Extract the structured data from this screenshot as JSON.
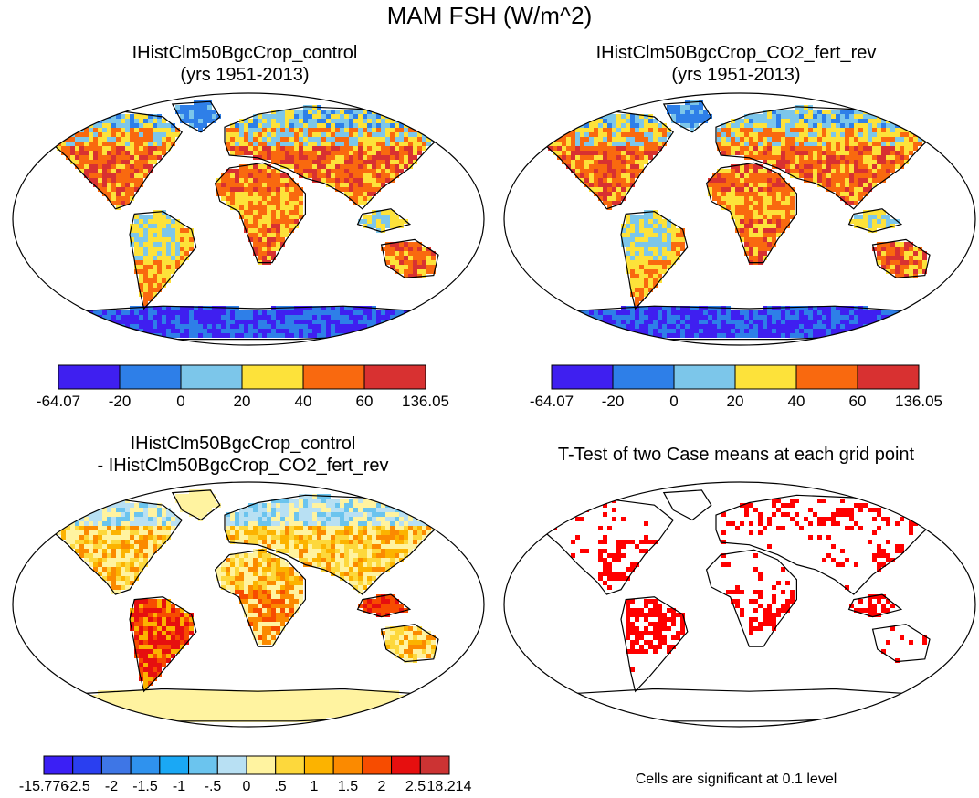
{
  "figure": {
    "title": "MAM FSH (W/m^2)",
    "panels": [
      {
        "id": "control",
        "title_line1": "IHistClm50BgcCrop_control",
        "title_line2": "(yrs 1951-2013)"
      },
      {
        "id": "co2",
        "title_line1": "IHistClm50BgcCrop_CO2_fert_rev",
        "title_line2": "(yrs 1951-2013)"
      },
      {
        "id": "diff",
        "title_line1": "IHistClm50BgcCrop_control",
        "title_line2": "- IHistClm50BgcCrop_CO2_fert_rev"
      },
      {
        "id": "ttest",
        "title_line1": "T-Test of two Case means at each grid point",
        "title_line2": ""
      }
    ],
    "note": "Cells are significant at 0.1 level"
  },
  "colorbars": {
    "abs": {
      "labels": [
        "-64.07",
        "-20",
        "0",
        "20",
        "40",
        "60",
        "136.05"
      ],
      "colors": [
        "#3f1ff0",
        "#2e7fe8",
        "#7cc6ea",
        "#fde23a",
        "#f9690f",
        "#d83131"
      ]
    },
    "diff": {
      "labels": [
        "-15.776",
        "-2.5",
        "-2",
        "-1.5",
        "-1",
        "-.5",
        "0",
        ".5",
        "1",
        "1.5",
        "2",
        "2.5",
        "18.214"
      ],
      "colors": [
        "#3b1ff5",
        "#2a3ff0",
        "#3e76e6",
        "#2f92ee",
        "#1aa8f5",
        "#6bc4ee",
        "#b8e0f3",
        "#fff3a0",
        "#fdd83c",
        "#fcb300",
        "#fb8a00",
        "#f74c00",
        "#e60f0f",
        "#cc3333"
      ]
    }
  },
  "chart_data": [
    {
      "type": "heatmap",
      "title": "IHistClm50BgcCrop_control (yrs 1951-2013)",
      "variable": "MAM FSH (W/m^2)",
      "levels": [
        -64.07,
        -20,
        0,
        20,
        40,
        60,
        136.05
      ]
    },
    {
      "type": "heatmap",
      "title": "IHistClm50BgcCrop_CO2_fert_rev (yrs 1951-2013)",
      "variable": "MAM FSH (W/m^2)",
      "levels": [
        -64.07,
        -20,
        0,
        20,
        40,
        60,
        136.05
      ]
    },
    {
      "type": "heatmap",
      "title": "IHistClm50BgcCrop_control - IHistClm50BgcCrop_CO2_fert_rev",
      "levels": [
        -15.776,
        -2.5,
        -2,
        -1.5,
        -1,
        -0.5,
        0,
        0.5,
        1,
        1.5,
        2,
        2.5,
        18.214
      ]
    },
    {
      "type": "heatmap",
      "title": "T-Test of two Case means at each grid point",
      "annotation": "Cells are significant at 0.1 level"
    }
  ]
}
